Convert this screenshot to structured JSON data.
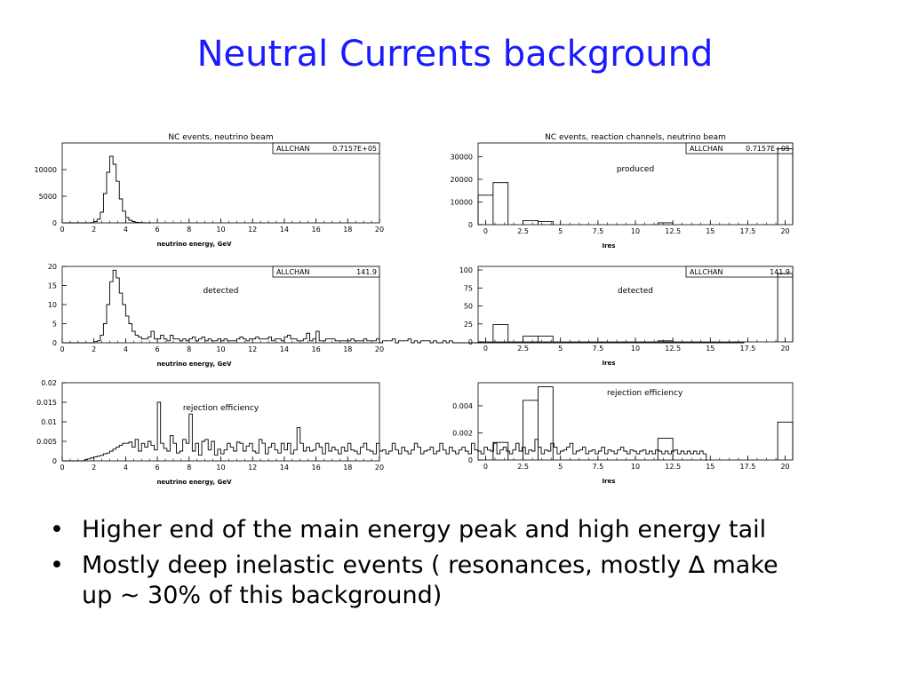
{
  "slide": {
    "title": "Neutral Currents background",
    "bullets": [
      "Higher end of the main energy peak and high energy tail",
      "Mostly deep inelastic events ( resonances, mostly ∆ make up ~ 30% of this background)"
    ],
    "bullet_char": "•",
    "colors": {
      "title": "#1a1aff",
      "text": "#000000",
      "axis": "#000000"
    }
  },
  "chart_data": [
    {
      "type": "histogram",
      "title": "NC events, neutrino beam",
      "stat_label": "ALLCHAN",
      "stat_value": "0.7157E+05",
      "xlabel": "neutrino energy, GeV",
      "ylabel": "",
      "annotation": "",
      "xlim": [
        0,
        20
      ],
      "ylim": [
        0,
        15000
      ],
      "xticks": [
        "0",
        "2",
        "4",
        "6",
        "8",
        "10",
        "12",
        "14",
        "16",
        "18",
        "20"
      ],
      "yticks": [
        0,
        5000,
        10000
      ],
      "bin_width": 0.2,
      "values": [
        0,
        0,
        0,
        0,
        0,
        0,
        0,
        0,
        0,
        60,
        250,
        700,
        2000,
        5500,
        9500,
        12500,
        11000,
        7800,
        4500,
        2200,
        1000,
        500,
        250,
        120,
        60,
        30,
        15,
        0
      ]
    },
    {
      "type": "histogram",
      "title": "",
      "stat_label": "ALLCHAN",
      "stat_value": "141.9",
      "xlabel": "neutrino energy, GeV",
      "ylabel": "",
      "annotation": "detected",
      "xlim": [
        0,
        20
      ],
      "ylim": [
        0,
        20
      ],
      "xticks": [
        "0",
        "2",
        "4",
        "6",
        "8",
        "10",
        "12",
        "14",
        "16",
        "18",
        "20"
      ],
      "yticks": [
        0,
        5,
        10,
        15,
        20
      ],
      "bin_width": 0.2,
      "values": [
        0,
        0,
        0,
        0,
        0,
        0,
        0,
        0,
        0,
        0,
        0.3,
        0.5,
        2,
        5,
        10,
        16,
        19,
        17,
        13,
        10,
        7,
        5,
        3,
        2,
        1.5,
        1,
        1,
        1.5,
        3,
        1,
        1,
        2,
        1,
        0.5,
        2,
        1,
        1,
        0.5,
        1,
        0.5,
        1,
        1.5,
        0.5,
        1,
        1.5,
        0.5,
        1,
        0.5,
        0.5,
        1,
        0.5,
        1,
        0.5,
        0.5,
        0.5,
        1,
        1.5,
        1,
        0.5,
        1,
        1,
        1.5,
        1,
        1,
        1,
        1.5,
        0.5,
        1,
        1,
        0.5,
        1.5,
        2,
        1,
        1,
        0.5,
        0.5,
        1,
        2.5,
        0.5,
        1,
        3,
        0.5,
        0.5,
        1,
        1,
        1,
        0.5,
        0.5,
        0.5,
        0.5,
        0.5,
        1,
        0.5,
        0.5,
        0.5,
        1,
        0.5,
        0.5,
        0.5,
        1,
        0,
        0.5,
        0.5,
        0.5,
        1,
        0,
        0.5,
        0.5,
        0.5,
        1,
        0,
        0.5,
        0,
        0.5,
        0.5,
        0.5,
        0,
        0.5,
        0,
        0,
        0.5,
        0,
        0.5,
        0,
        0,
        0,
        0,
        0,
        0,
        0,
        0,
        0,
        0,
        0,
        0,
        0,
        0,
        0,
        0,
        0,
        0,
        0,
        0,
        0,
        0,
        0,
        0,
        0,
        0,
        0,
        0,
        0,
        0,
        0,
        0,
        0,
        0,
        0,
        0,
        0,
        0,
        0,
        0,
        0,
        0,
        0,
        0,
        0,
        0,
        0,
        0,
        0,
        0,
        0,
        0,
        0,
        0,
        0,
        0,
        0,
        0,
        0,
        0,
        0,
        0,
        0,
        0,
        0,
        0,
        0,
        0,
        0,
        0,
        0,
        0,
        0,
        0,
        0,
        0,
        0,
        0,
        0,
        0,
        0,
        0,
        0,
        0,
        0,
        0,
        0,
        0,
        0,
        0,
        0,
        0
      ]
    },
    {
      "type": "histogram",
      "title": "",
      "stat_label": "",
      "stat_value": "",
      "xlabel": "neutrino energy, GeV",
      "ylabel": "",
      "annotation": "rejection efficiency",
      "xlim": [
        0,
        20
      ],
      "ylim": [
        0,
        0.02
      ],
      "xticks": [
        "0",
        "2",
        "4",
        "6",
        "8",
        "10",
        "12",
        "14",
        "16",
        "18",
        "20"
      ],
      "yticks": [
        0,
        0.005,
        0.01,
        0.015,
        0.02
      ],
      "ytick_labels": [
        "0",
        "0.005",
        "0.01",
        "0.015",
        "0.02"
      ],
      "bin_width": 0.2,
      "values": [
        0,
        0,
        0,
        0,
        0,
        0,
        0,
        0.0003,
        0.0005,
        0.0008,
        0.001,
        0.0012,
        0.0014,
        0.0018,
        0.002,
        0.0025,
        0.003,
        0.0035,
        0.004,
        0.0045,
        0.0045,
        0.0048,
        0.0035,
        0.0055,
        0.0025,
        0.0045,
        0.0035,
        0.005,
        0.004,
        0.0028,
        0.015,
        0.0045,
        0.0032,
        0.0025,
        0.0065,
        0.0045,
        0.002,
        0.0025,
        0.0055,
        0.0045,
        0.012,
        0.0025,
        0.0045,
        0.0015,
        0.005,
        0.0055,
        0.0028,
        0.005,
        0.0015,
        0.003,
        0.0018,
        0.0028,
        0.0045,
        0.0035,
        0.0025,
        0.0048,
        0.0045,
        0.0025,
        0.0038,
        0.0045,
        0.0025,
        0.002,
        0.0055,
        0.0045,
        0.0018,
        0.0035,
        0.0045,
        0.0028,
        0.002,
        0.0045,
        0.0028,
        0.0045,
        0.0018,
        0.0028,
        0.0085,
        0.0045,
        0.0025,
        0.0035,
        0.0025,
        0.0028,
        0.0045,
        0.0035,
        0.0018,
        0.0045,
        0.0025,
        0.0035,
        0.0028,
        0.0018,
        0.0035,
        0.0025,
        0.0045,
        0.0028,
        0.0025,
        0.0018,
        0.0035,
        0.0045,
        0.0028,
        0.0025,
        0.0018,
        0.0045,
        0.0025,
        0.0028,
        0.0018,
        0.0025,
        0.0045,
        0.0028,
        0.0018,
        0.0035,
        0.0025,
        0.0018,
        0.0028,
        0.0045,
        0.0035,
        0.0018,
        0.0025,
        0.0028,
        0.0035,
        0.0018,
        0.0025,
        0.0045,
        0.0028,
        0.0018,
        0.0035,
        0.0025,
        0.0018,
        0.0028,
        0.0035,
        0.0025,
        0.0018,
        0.0045,
        0.0028,
        0.0025,
        0.0018,
        0.0035,
        0.0028,
        0.0025,
        0.0045,
        0.0018,
        0.0028,
        0.0035,
        0.0025,
        0.0018,
        0.0028,
        0.0045,
        0.0025,
        0.0035,
        0.0018,
        0.0028,
        0.0025,
        0.0055,
        0.0035,
        0.0018,
        0.0028,
        0.0025,
        0.0045,
        0.0035,
        0.0018,
        0.0025,
        0.0028,
        0.0035,
        0.0045,
        0.0018,
        0.0025,
        0.0028,
        0.0035,
        0.0018,
        0.0025,
        0.0028,
        0.0018,
        0.0025,
        0.0035,
        0.0018,
        0.0028,
        0.0025,
        0.0018,
        0.0028,
        0.0035,
        0.0025,
        0.0018,
        0.0028,
        0.0025,
        0.0018,
        0.0025,
        0.0028,
        0.0018,
        0.0025,
        0.0018,
        0.0028,
        0.0025,
        0.0018,
        0.0025,
        0.0018,
        0.0025,
        0.0028,
        0.0018,
        0.0025,
        0.0018,
        0.0025,
        0.0018,
        0.0025,
        0.0018,
        0.0025,
        0.0018
      ]
    },
    {
      "type": "histogram",
      "title": "NC events, reaction channels, neutrino beam",
      "stat_label": "ALLCHAN",
      "stat_value": "0.7157E+05",
      "xlabel": "Ires",
      "ylabel": "",
      "annotation": "produced",
      "xlim": [
        -0.5,
        20.5
      ],
      "ylim": [
        0,
        36000
      ],
      "xticks": [
        "0",
        "2.5",
        "5",
        "7.5",
        "10",
        "12.5",
        "15",
        "17.5",
        "20"
      ],
      "yticks": [
        0,
        10000,
        20000,
        30000
      ],
      "bins": [
        {
          "x0": -0.5,
          "x1": 0.5,
          "v": 13000
        },
        {
          "x0": 0.5,
          "x1": 1.5,
          "v": 18500
        },
        {
          "x0": 2.5,
          "x1": 3.5,
          "v": 1800
        },
        {
          "x0": 3.5,
          "x1": 4.5,
          "v": 1400
        },
        {
          "x0": 11.5,
          "x1": 12.5,
          "v": 800
        },
        {
          "x0": 19.5,
          "x1": 20.5,
          "v": 33500
        }
      ]
    },
    {
      "type": "histogram",
      "title": "",
      "stat_label": "ALLCHAN",
      "stat_value": "141.9",
      "xlabel": "Ires",
      "ylabel": "",
      "annotation": "detected",
      "xlim": [
        -0.5,
        20.5
      ],
      "ylim": [
        0,
        105
      ],
      "xticks": [
        "0",
        "2.5",
        "5",
        "7.5",
        "10",
        "12.5",
        "15",
        "17.5",
        "20"
      ],
      "yticks": [
        0,
        25,
        50,
        75,
        100
      ],
      "bins": [
        {
          "x0": 0.5,
          "x1": 1.5,
          "v": 24
        },
        {
          "x0": 2.5,
          "x1": 3.5,
          "v": 8
        },
        {
          "x0": 3.5,
          "x1": 4.5,
          "v": 8
        },
        {
          "x0": 11.5,
          "x1": 12.5,
          "v": 1.5
        },
        {
          "x0": 19.5,
          "x1": 20.5,
          "v": 95
        }
      ]
    },
    {
      "type": "histogram",
      "title": "",
      "stat_label": "",
      "stat_value": "",
      "xlabel": "Ires",
      "ylabel": "",
      "annotation": "rejection efficiency",
      "xlim": [
        -0.5,
        20.5
      ],
      "ylim": [
        0,
        0.0057
      ],
      "xticks": [
        "0",
        "2.5",
        "5",
        "7.5",
        "10",
        "12.5",
        "15",
        "17.5",
        "20"
      ],
      "yticks": [
        0,
        0.002,
        0.004
      ],
      "ytick_labels": [
        "0",
        "0.002",
        "0.004"
      ],
      "bins": [
        {
          "x0": 0.5,
          "x1": 1.5,
          "v": 0.0013
        },
        {
          "x0": 2.5,
          "x1": 3.5,
          "v": 0.0044
        },
        {
          "x0": 3.5,
          "x1": 4.5,
          "v": 0.0054
        },
        {
          "x0": 11.5,
          "x1": 12.5,
          "v": 0.0016
        },
        {
          "x0": 19.5,
          "x1": 20.5,
          "v": 0.0028
        }
      ]
    }
  ]
}
